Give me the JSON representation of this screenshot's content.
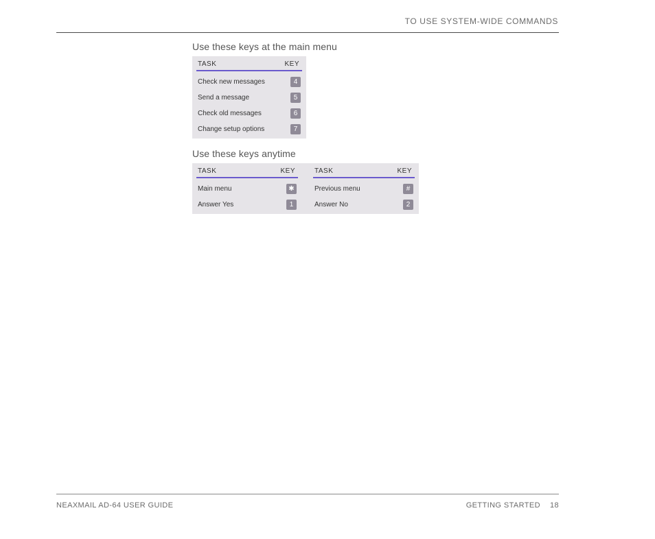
{
  "header": {
    "title": "TO USE SYSTEM-WIDE COMMANDS"
  },
  "section1": {
    "title": "Use these keys at the main menu",
    "col_task": "TASK",
    "col_key": "KEY",
    "rows": [
      {
        "task": "Check new messages",
        "key": "4"
      },
      {
        "task": "Send a message",
        "key": "5"
      },
      {
        "task": "Check old messages",
        "key": "6"
      },
      {
        "task": "Change setup options",
        "key": "7"
      }
    ]
  },
  "section2": {
    "title": "Use these keys anytime",
    "left": {
      "col_task": "TASK",
      "col_key": "KEY",
      "rows": [
        {
          "task": "Main menu",
          "key": "✱"
        },
        {
          "task": "Answer Yes",
          "key": "1"
        }
      ]
    },
    "right": {
      "col_task": "TASK",
      "col_key": "KEY",
      "rows": [
        {
          "task": "Previous menu",
          "key": "#"
        },
        {
          "task": "Answer No",
          "key": "2"
        }
      ]
    }
  },
  "footer": {
    "left": "NEAXMAIL AD-64 USER GUIDE",
    "section": "GETTING STARTED",
    "page": "18"
  },
  "colors": {
    "header_rule": "#4a4a4a",
    "accent": "#6a5acd",
    "table_bg": "#e6e4e8",
    "key_bg": "#8f8a97",
    "page_bg": "#ffffff",
    "muted_text": "#6b6b6b",
    "body_text": "#333333"
  }
}
